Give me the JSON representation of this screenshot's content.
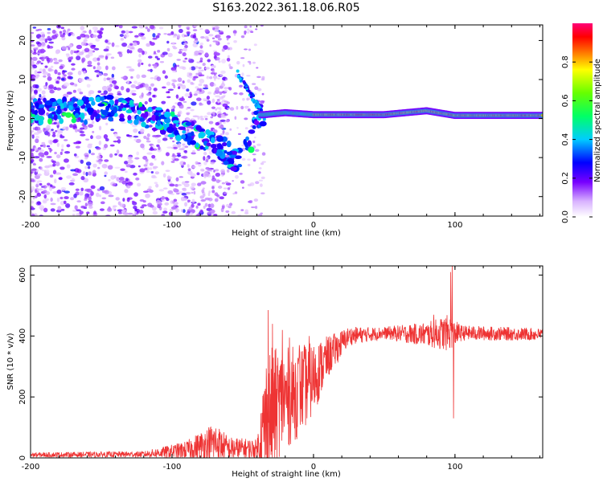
{
  "title": "S163.2022.361.18.06.R05",
  "chart_data": [
    {
      "type": "heatmap",
      "xlabel": "Height of straight line (km)",
      "ylabel": "Frequency (Hz)",
      "xlim": [
        -200,
        162
      ],
      "ylim": [
        -25,
        24
      ],
      "xticks": [
        -200,
        -100,
        0,
        100
      ],
      "yticks": [
        -20,
        -10,
        0,
        10,
        20
      ],
      "colorbar": {
        "label": "Normalized spectral amplitude",
        "range": [
          0,
          1
        ],
        "ticks": [
          "0.0",
          "0.2",
          "0.4",
          "0.6",
          "0.8"
        ],
        "tick_values": [
          0.0,
          0.2,
          0.4,
          0.6,
          0.8
        ]
      },
      "ridge": [
        {
          "x": -180,
          "f": 2.0
        },
        {
          "x": -160,
          "f": 2.0
        },
        {
          "x": -140,
          "f": 3.0
        },
        {
          "x": -120,
          "f": 1.0
        },
        {
          "x": -100,
          "f": -1.5
        },
        {
          "x": -90,
          "f": -3.0
        },
        {
          "x": -80,
          "f": -5.0
        },
        {
          "x": -70,
          "f": -6.5
        },
        {
          "x": -60,
          "f": -9.0
        },
        {
          "x": -55,
          "f": -11.0
        },
        {
          "x": -45,
          "f": -7.0
        },
        {
          "x": -40,
          "f": 1.0
        },
        {
          "x": -35,
          "f": 1.0
        },
        {
          "x": -20,
          "f": 1.5
        },
        {
          "x": 0,
          "f": 1.0
        },
        {
          "x": 50,
          "f": 1.0
        },
        {
          "x": 80,
          "f": 2.0
        },
        {
          "x": 100,
          "f": 0.8
        },
        {
          "x": 162,
          "f": 0.8
        }
      ]
    },
    {
      "type": "line",
      "xlabel": "Height of straight line (km)",
      "ylabel": "SNR (10 * v/v)",
      "xlim": [
        -200,
        162
      ],
      "ylim": [
        0,
        630
      ],
      "xticks": [
        -200,
        -100,
        0,
        100
      ],
      "yticks": [
        0,
        200,
        400,
        600
      ],
      "color": "#ee3333",
      "envelope": [
        {
          "x": -200,
          "base": 10,
          "amp": 8
        },
        {
          "x": -120,
          "base": 12,
          "amp": 10
        },
        {
          "x": -90,
          "base": 25,
          "amp": 30
        },
        {
          "x": -70,
          "base": 50,
          "amp": 70
        },
        {
          "x": -60,
          "base": 30,
          "amp": 40
        },
        {
          "x": -40,
          "base": 30,
          "amp": 30
        },
        {
          "x": -33,
          "base": 120,
          "amp": 250
        },
        {
          "x": -25,
          "base": 180,
          "amp": 180
        },
        {
          "x": -10,
          "base": 220,
          "amp": 150
        },
        {
          "x": 0,
          "base": 260,
          "amp": 120
        },
        {
          "x": 10,
          "base": 330,
          "amp": 70
        },
        {
          "x": 25,
          "base": 400,
          "amp": 30
        },
        {
          "x": 50,
          "base": 410,
          "amp": 20
        },
        {
          "x": 80,
          "base": 405,
          "amp": 40
        },
        {
          "x": 95,
          "base": 410,
          "amp": 60
        },
        {
          "x": 105,
          "base": 410,
          "amp": 25
        },
        {
          "x": 162,
          "base": 405,
          "amp": 20
        }
      ],
      "spikes": [
        {
          "x": -32,
          "y": 485
        },
        {
          "x": -29,
          "y": 440
        },
        {
          "x": -22,
          "y": 420
        },
        {
          "x": -17,
          "y": 395
        },
        {
          "x": -10,
          "y": 370
        },
        {
          "x": -3,
          "y": 400
        },
        {
          "x": 85,
          "y": 470
        },
        {
          "x": 97,
          "y": 610
        },
        {
          "x": 98,
          "y": 630
        },
        {
          "x": 99,
          "y": 130
        }
      ]
    }
  ]
}
